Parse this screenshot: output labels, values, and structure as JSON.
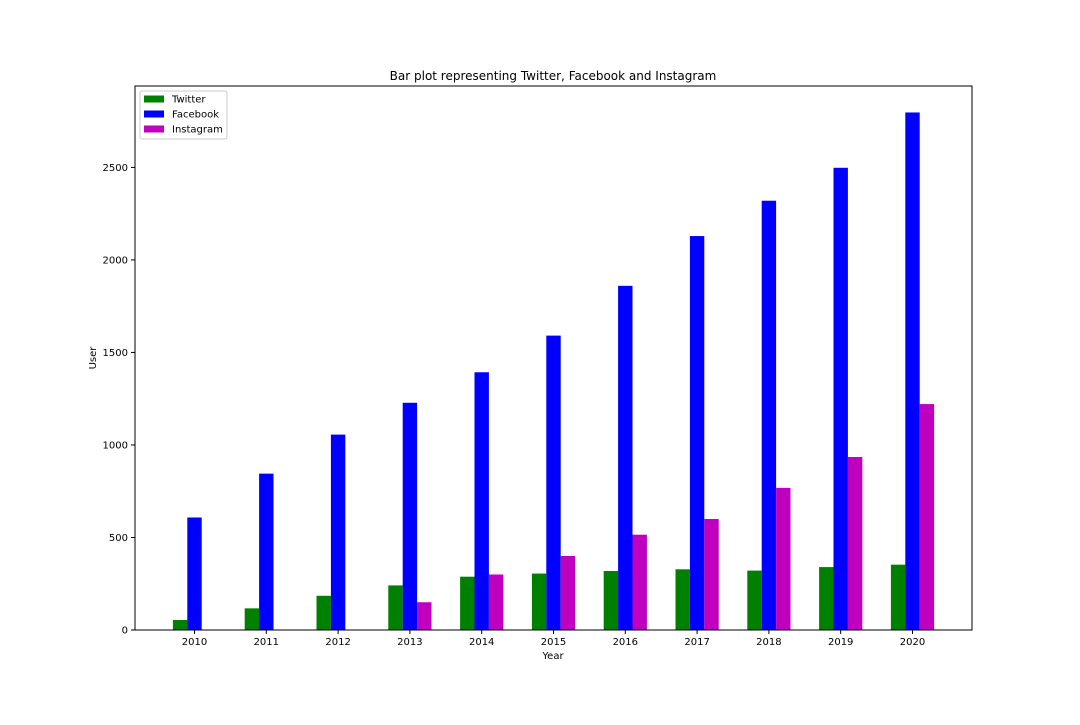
{
  "chart_data": {
    "type": "bar",
    "title": "Bar plot representing Twitter, Facebook and Instagram",
    "xlabel": "Year",
    "ylabel": "User",
    "categories": [
      "2010",
      "2011",
      "2012",
      "2013",
      "2014",
      "2015",
      "2016",
      "2017",
      "2018",
      "2019",
      "2020"
    ],
    "series": [
      {
        "name": "Twitter",
        "color": "#008000",
        "values": [
          54,
          117,
          185,
          241,
          288,
          305,
          319,
          328,
          321,
          340,
          353
        ]
      },
      {
        "name": "Facebook",
        "color": "#0000ff",
        "values": [
          608,
          845,
          1056,
          1228,
          1393,
          1591,
          1860,
          2129,
          2320,
          2498,
          2797
        ]
      },
      {
        "name": "Instagram",
        "color": "#bf00bf",
        "values": [
          0,
          0,
          0,
          150,
          300,
          400,
          515,
          600,
          768,
          935,
          1221
        ]
      }
    ],
    "ylim": [
      0,
      2940
    ],
    "yticks": [
      0,
      500,
      1000,
      1500,
      2000,
      2500
    ],
    "legend_position": "top-left",
    "grid": false
  }
}
